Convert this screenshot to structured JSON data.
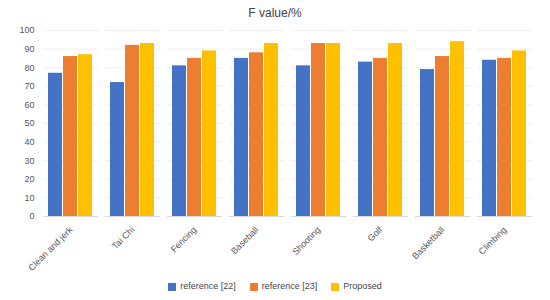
{
  "chart_data": {
    "type": "bar",
    "title": "F value/%",
    "categories": [
      "Clean and jerk",
      "Tai Chi",
      "Fencing",
      "Baseball",
      "Shooting",
      "Golf",
      "Basketball",
      "Climbing"
    ],
    "series": [
      {
        "name": "reference [22]",
        "color": "#4472c4",
        "values": [
          77,
          72,
          81,
          85,
          81,
          83,
          79,
          84
        ]
      },
      {
        "name": "reference [23]",
        "color": "#ed7d31",
        "values": [
          86,
          92,
          85,
          88,
          93,
          85,
          86,
          85
        ]
      },
      {
        "name": "Proposed",
        "color": "#ffc000",
        "values": [
          87,
          93,
          89,
          93,
          93,
          93,
          94,
          89
        ]
      }
    ],
    "ylim": [
      0,
      100
    ],
    "yticks": [
      0,
      10,
      20,
      30,
      40,
      50,
      60,
      70,
      80,
      90,
      100
    ],
    "grid": true,
    "legend": "bottom"
  }
}
